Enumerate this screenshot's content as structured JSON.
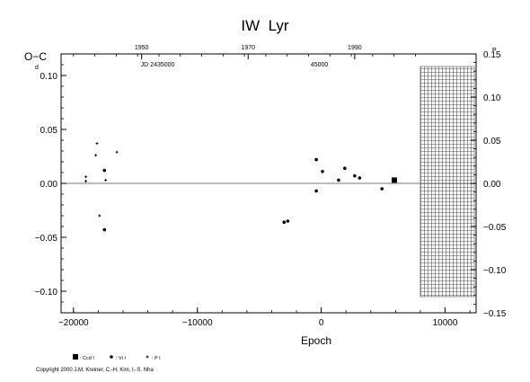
{
  "chart_data": {
    "type": "scatter",
    "title": "IW  Lyr",
    "xlabel": "Epoch",
    "ylabel": "O−C",
    "ylabel_unit": "d",
    "right_unit": "P",
    "xlim": [
      -21000,
      12500
    ],
    "ylim": [
      -0.12,
      0.12
    ],
    "right_ylim": [
      -0.15,
      0.15
    ],
    "x_ticks": [
      -20000,
      -10000,
      0,
      10000
    ],
    "x_tick_labels": [
      "−20000",
      "−10000",
      "0",
      "10000"
    ],
    "y_ticks": [
      -0.1,
      -0.05,
      0.0,
      0.05,
      0.1
    ],
    "y_tick_labels": [
      "−0.10",
      "−0.05",
      "0.00",
      "0.05",
      "0.10"
    ],
    "right_ticks": [
      -0.15,
      -0.1,
      -0.05,
      0.0,
      0.05,
      0.1,
      0.15
    ],
    "right_tick_labels": [
      "−0.15",
      "−0.10",
      "−0.05",
      "0.00",
      "0.05",
      "0.10",
      "0.15"
    ],
    "top_year_ticks": [
      {
        "epoch": -14500,
        "label": "1950"
      },
      {
        "epoch": -5900,
        "label": "1970"
      },
      {
        "epoch": 2700,
        "label": "1990"
      }
    ],
    "jd_labels": [
      {
        "epoch": -13200,
        "label": "JD 2435000"
      },
      {
        "epoch": -150,
        "label": "45000"
      }
    ],
    "grid": false,
    "hatched_region_start": 8000,
    "series": [
      {
        "name": ": Ccd I",
        "marker": "square",
        "points": [
          [
            5900,
            0.003
          ]
        ]
      },
      {
        "name": ": Vi I",
        "marker": "dot",
        "points": [
          [
            -17500,
            0.012
          ],
          [
            -17500,
            -0.043
          ],
          [
            -3000,
            -0.036
          ],
          [
            -2700,
            -0.035
          ],
          [
            -400,
            0.022
          ],
          [
            -400,
            -0.007
          ],
          [
            100,
            0.011
          ],
          [
            1400,
            0.003
          ],
          [
            1900,
            0.014
          ],
          [
            2700,
            0.007
          ],
          [
            3100,
            0.005
          ],
          [
            4900,
            -0.005
          ]
        ]
      },
      {
        "name": ": P I",
        "marker": "plus",
        "points": [
          [
            -19000,
            0.006
          ],
          [
            -19000,
            0.002
          ],
          [
            -18200,
            0.026
          ],
          [
            -18100,
            0.037
          ],
          [
            -17900,
            -0.03
          ],
          [
            -17400,
            0.003
          ],
          [
            -16500,
            0.029
          ]
        ]
      }
    ],
    "copyright": "Copyright 2000 J.M. Kreiner, C.-H. Kim, I.-S. Nha"
  }
}
